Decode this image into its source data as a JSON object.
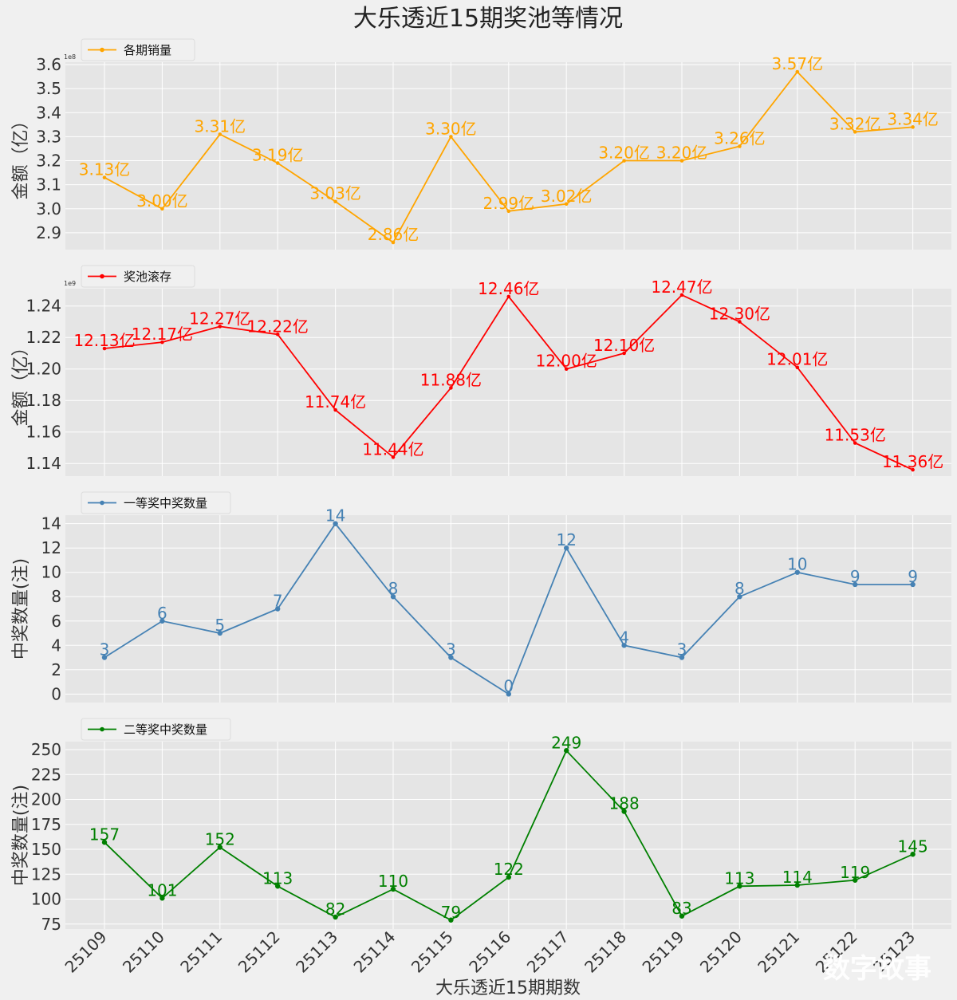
{
  "figure": {
    "title": "大乐透近15期奖池等情况",
    "xlabel": "大乐透近15期期数",
    "watermark": "数字故事"
  },
  "chart_data": [
    {
      "type": "line",
      "legend": "各期销量",
      "color": "#ffa500",
      "ylabel": "金额（亿）",
      "sci_note": "1e8",
      "x": [
        "25109",
        "25110",
        "25111",
        "25112",
        "25113",
        "25114",
        "25115",
        "25116",
        "25117",
        "25118",
        "25119",
        "25120",
        "25121",
        "25122",
        "25123"
      ],
      "values": [
        313000000,
        300000000,
        331000000,
        319000000,
        303000000,
        286000000,
        330000000,
        299000000,
        302000000,
        320000000,
        320000000,
        326000000,
        357000000,
        332000000,
        334000000
      ],
      "labels": [
        "3.13亿",
        "3.00亿",
        "3.31亿",
        "3.19亿",
        "3.03亿",
        "2.86亿",
        "3.30亿",
        "2.99亿",
        "3.02亿",
        "3.20亿",
        "3.20亿",
        "3.26亿",
        "3.57亿",
        "3.32亿",
        "3.34亿"
      ],
      "ylim": [
        283000000,
        361000000
      ],
      "yticks": [
        290000000,
        300000000,
        310000000,
        320000000,
        330000000,
        340000000,
        350000000,
        360000000
      ],
      "yticklabels": [
        "2.9",
        "3.0",
        "3.1",
        "3.2",
        "3.3",
        "3.4",
        "3.5",
        "3.6"
      ],
      "legend_position": "top-left"
    },
    {
      "type": "line",
      "legend": "奖池滚存",
      "color": "#ff0000",
      "ylabel": "金额（亿）",
      "sci_note": "1e9",
      "x": [
        "25109",
        "25110",
        "25111",
        "25112",
        "25113",
        "25114",
        "25115",
        "25116",
        "25117",
        "25118",
        "25119",
        "25120",
        "25121",
        "25122",
        "25123"
      ],
      "values": [
        1213000000,
        1217000000,
        1227000000,
        1222000000,
        1174000000,
        1144000000,
        1188000000,
        1246000000,
        1200000000,
        1210000000,
        1247000000,
        1230000000,
        1201000000,
        1153000000,
        1136000000
      ],
      "labels": [
        "12.13亿",
        "12.17亿",
        "12.27亿",
        "12.22亿",
        "11.74亿",
        "11.44亿",
        "11.88亿",
        "12.46亿",
        "12.00亿",
        "12.10亿",
        "12.47亿",
        "12.30亿",
        "12.01亿",
        "11.53亿",
        "11.36亿"
      ],
      "ylim": [
        1132000000,
        1251000000
      ],
      "yticks": [
        1140000000,
        1160000000,
        1180000000,
        1200000000,
        1220000000,
        1240000000
      ],
      "yticklabels": [
        "1.14",
        "1.16",
        "1.18",
        "1.20",
        "1.22",
        "1.24"
      ],
      "legend_position": "top-left"
    },
    {
      "type": "line",
      "legend": "一等奖中奖数量",
      "color": "#4682b4",
      "ylabel": "中奖数量(注)",
      "x": [
        "25109",
        "25110",
        "25111",
        "25112",
        "25113",
        "25114",
        "25115",
        "25116",
        "25117",
        "25118",
        "25119",
        "25120",
        "25121",
        "25122",
        "25123"
      ],
      "values": [
        3,
        6,
        5,
        7,
        14,
        8,
        3,
        0,
        12,
        4,
        3,
        8,
        10,
        9,
        9
      ],
      "labels": [
        "3",
        "6",
        "5",
        "7",
        "14",
        "8",
        "3",
        "0",
        "12",
        "4",
        "3",
        "8",
        "10",
        "9",
        "9"
      ],
      "ylim": [
        -0.7,
        14.7
      ],
      "yticks": [
        0,
        2,
        4,
        6,
        8,
        10,
        12,
        14
      ],
      "yticklabels": [
        "0",
        "2",
        "4",
        "6",
        "8",
        "10",
        "12",
        "14"
      ],
      "legend_position": "top-left"
    },
    {
      "type": "line",
      "legend": "二等奖中奖数量",
      "color": "#008000",
      "ylabel": "中奖数量(注)",
      "x": [
        "25109",
        "25110",
        "25111",
        "25112",
        "25113",
        "25114",
        "25115",
        "25116",
        "25117",
        "25118",
        "25119",
        "25120",
        "25121",
        "25122",
        "25123"
      ],
      "values": [
        157,
        101,
        152,
        113,
        82,
        110,
        79,
        122,
        249,
        188,
        83,
        113,
        114,
        119,
        145
      ],
      "labels": [
        "157",
        "101",
        "152",
        "113",
        "82",
        "110",
        "79",
        "122",
        "249",
        "188",
        "83",
        "113",
        "114",
        "119",
        "145"
      ],
      "ylim": [
        70,
        258
      ],
      "yticks": [
        75,
        100,
        125,
        150,
        175,
        200,
        225,
        250
      ],
      "yticklabels": [
        "75",
        "100",
        "125",
        "150",
        "175",
        "200",
        "225",
        "250"
      ],
      "legend_position": "top-left"
    }
  ]
}
